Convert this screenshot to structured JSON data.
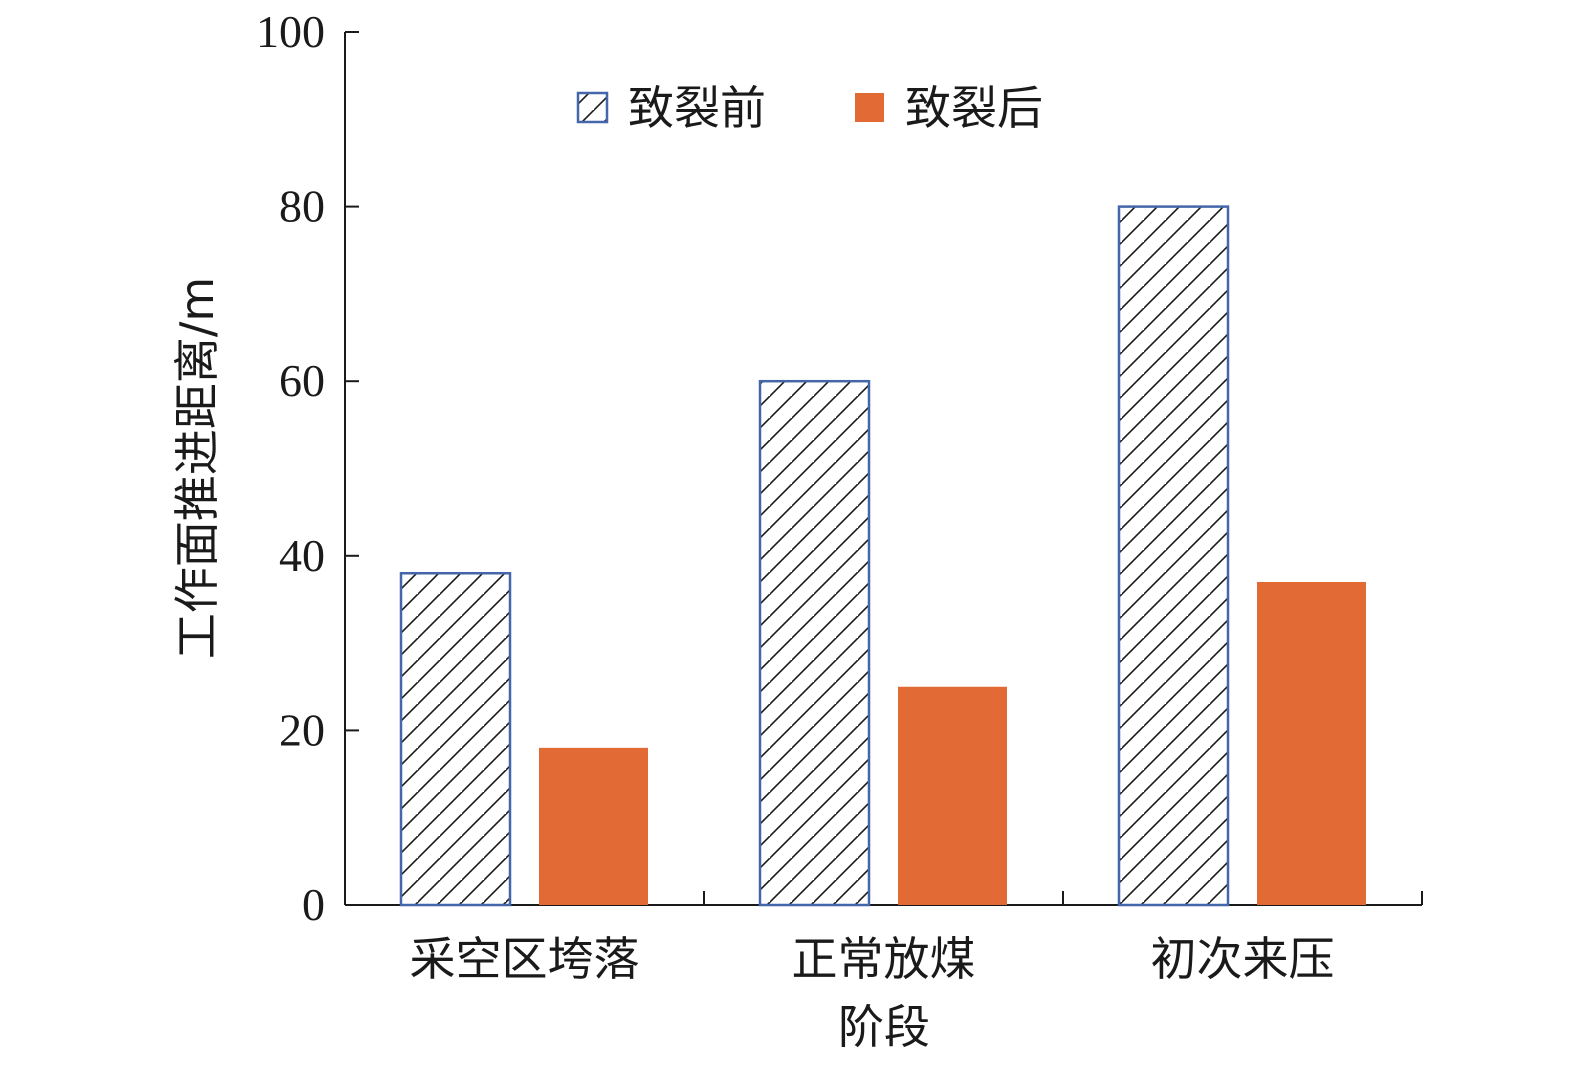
{
  "chart_data": {
    "type": "bar",
    "categories": [
      "采空区垮落",
      "正常放煤",
      "初次来压"
    ],
    "series": [
      {
        "name": "致裂前",
        "values": [
          38,
          60,
          80
        ],
        "style": "hatched",
        "stroke": "#4466aa",
        "fill": "#ffffff"
      },
      {
        "name": "致裂后",
        "values": [
          18,
          25,
          37
        ],
        "style": "solid",
        "fill": "#e26a35"
      }
    ],
    "xlabel": "阶段",
    "ylabel": "工作面推进距离/m",
    "ylim": [
      0,
      100
    ],
    "yticks": [
      0,
      20,
      40,
      60,
      80,
      100
    ],
    "grid": false,
    "legend": "top-center"
  }
}
